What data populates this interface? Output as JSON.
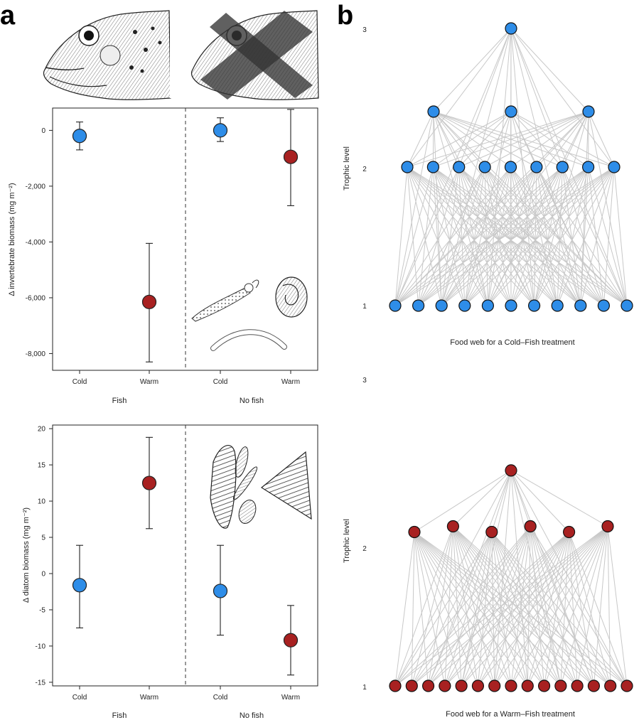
{
  "panels": {
    "a_label": "a",
    "b_label": "b"
  },
  "chart_data": [
    {
      "type": "scatter",
      "id": "invertebrate",
      "ylabel_html": "Δ invertebrate biomass (mg m⁻²)",
      "ylim": [
        -8600,
        800
      ],
      "yticks": [
        0,
        -2000,
        -4000,
        -6000,
        -8000
      ],
      "ytick_labels": [
        "0",
        "-2,000",
        "-4,000",
        "-6,000",
        "-8,000"
      ],
      "groups": [
        {
          "name": "Fish",
          "categories": [
            "Cold",
            "Warm"
          ]
        },
        {
          "name": "No fish",
          "categories": [
            "Cold",
            "Warm"
          ]
        }
      ],
      "points": [
        {
          "group": "Fish",
          "category": "Cold",
          "value": -200,
          "lo": -700,
          "hi": 300,
          "color": "#2e8de8"
        },
        {
          "group": "Fish",
          "category": "Warm",
          "value": -6150,
          "lo": -8300,
          "hi": -4050,
          "color": "#a82121"
        },
        {
          "group": "No fish",
          "category": "Cold",
          "value": 0,
          "lo": -400,
          "hi": 450,
          "color": "#2e8de8"
        },
        {
          "group": "No fish",
          "category": "Warm",
          "value": -950,
          "lo": -2700,
          "hi": 750,
          "color": "#a82121"
        }
      ]
    },
    {
      "type": "scatter",
      "id": "diatom",
      "ylabel_html": "Δ diatom biomass (mg m⁻²)",
      "ylim": [
        -15.5,
        20.5
      ],
      "yticks": [
        20,
        15,
        10,
        5,
        0,
        -5,
        -10,
        -15
      ],
      "ytick_labels": [
        "20",
        "15",
        "10",
        "5",
        "0",
        "-5",
        "-10",
        "-15"
      ],
      "groups": [
        {
          "name": "Fish",
          "categories": [
            "Cold",
            "Warm"
          ]
        },
        {
          "name": "No fish",
          "categories": [
            "Cold",
            "Warm"
          ]
        }
      ],
      "points": [
        {
          "group": "Fish",
          "category": "Cold",
          "value": -1.6,
          "lo": -7.5,
          "hi": 3.9,
          "color": "#2e8de8"
        },
        {
          "group": "Fish",
          "category": "Warm",
          "value": 12.5,
          "lo": 6.2,
          "hi": 18.8,
          "color": "#a82121"
        },
        {
          "group": "No fish",
          "category": "Cold",
          "value": -2.4,
          "lo": -8.5,
          "hi": 3.9,
          "color": "#2e8de8"
        },
        {
          "group": "No fish",
          "category": "Warm",
          "value": -9.2,
          "lo": -14.0,
          "hi": -4.4,
          "color": "#a82121"
        }
      ]
    },
    {
      "type": "network",
      "id": "foodweb-cold",
      "caption": "Food web for a Cold–Fish treatment",
      "ylabel": "Trophic level",
      "level_labels": [
        "1",
        "2",
        "3"
      ],
      "node_color": "#2e8de8",
      "levels": [
        {
          "trophic": 1,
          "count": 11
        },
        {
          "trophic": 2,
          "count": 9
        },
        {
          "trophic": 2.4,
          "count": 3
        },
        {
          "trophic": 3,
          "count": 1
        }
      ]
    },
    {
      "type": "network",
      "id": "foodweb-warm",
      "caption": "Food web for a Warm–Fish treatment",
      "ylabel": "Trophic level",
      "level_labels": [
        "1",
        "2",
        "3"
      ],
      "node_color": "#a82121",
      "levels": [
        {
          "trophic": 1,
          "count": 15
        },
        {
          "trophic": 2,
          "count": 6
        },
        {
          "trophic": 2.4,
          "count": 1
        }
      ]
    }
  ]
}
